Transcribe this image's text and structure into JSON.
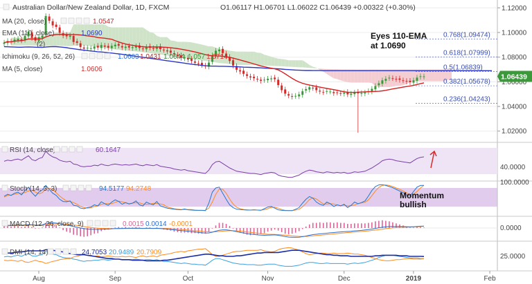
{
  "header": {
    "symbol": "Australian Dollar/New Zealand Dollar, 1D, FXCM",
    "ohlc": "O1.06117  H1.06701  L1.06022  C1.06439  +0.00322 (+0.30%)",
    "ma20": {
      "label": "MA (20, close)",
      "value": "1.0547"
    },
    "ema110": {
      "label": "EMA (110, close)",
      "value": "1.0690"
    },
    "hidden_label": "(2)",
    "ichimoku": {
      "label": "Ichimoku (9, 26, 52, 26)",
      "v1": "1.0603",
      "v2": "1.0431",
      "v3": "1.0644",
      "v4": "1.057",
      "v5": "1.0714"
    },
    "ma5": {
      "label": "MA (5, close)",
      "value": "1.0606"
    }
  },
  "annotations": {
    "eyes_line1": "Eyes 110-EMA",
    "eyes_line2": "at 1.0690",
    "momentum_line1": "Momentum",
    "momentum_line2": "bullish"
  },
  "fib_levels": [
    {
      "label": "0.768(1.09474)",
      "value": 1.09474
    },
    {
      "label": "0.618(1.07999)",
      "value": 1.07999
    },
    {
      "label": "0.5(1.06839)",
      "value": 1.06839
    },
    {
      "label": "0.382(1.05678)",
      "value": 1.05678
    },
    {
      "label": "0.236(1.04243)",
      "value": 1.04243
    }
  ],
  "price_badge": "1.06439",
  "indicators": {
    "rsi": {
      "label": "RSI (14, close)",
      "value": "60.1647",
      "axis": "40.0000"
    },
    "stoch": {
      "label": "Stoch (14, 3, 3)",
      "k": "94.5177",
      "d": "94.2748",
      "axis": "100.0000"
    },
    "macd": {
      "label": "MACD (12, 26, close, 9)",
      "v1": "0.0015",
      "v2": "0.0014",
      "v3": "-0.0001",
      "axis": "0.0000"
    },
    "dmi": {
      "label": "DMI (14, 14)",
      "v1": "24.7053",
      "v2": "20.9489",
      "v3": "20.7909",
      "axis": "25.0000"
    }
  },
  "colors": {
    "bull": "#3a9a3a",
    "bear": "#d42a2a",
    "ma20": "#d62020",
    "ema110": "#2a35c8",
    "cloud_green": "#cfe3c8",
    "cloud_red": "#f4cdd2",
    "rsi": "#7b3fa8",
    "rsi_band": "#efe4f6",
    "stoch_k": "#1f77d0",
    "stoch_d": "#ff8a1a",
    "stoch_band": "#d4b7e6",
    "macd_hist": "#e0609a",
    "macd_line": "#2a6fd0",
    "macd_signal": "#ff8a1a",
    "dmi_adx": "#1a2ba8",
    "dmi_plus": "#3aa0e0",
    "dmi_minus": "#ff8a1a",
    "fib": "#3a4fb0"
  },
  "chart_data": {
    "type": "line",
    "instrument": "AUD/NZD",
    "timeframe": "1D",
    "y_axis_ticks": [
      "1.12000",
      "1.10000",
      "1.08000",
      "1.06000",
      "1.04000",
      "1.02000"
    ],
    "ylim": [
      1.012,
      1.123
    ],
    "x_axis_ticks": [
      "Aug",
      "Sep",
      "Oct",
      "Nov",
      "Dec",
      "2019",
      "Feb"
    ],
    "x_tick_positions": [
      0,
      22,
      43,
      66,
      88,
      108,
      130
    ],
    "last_index": 121,
    "close": [
      1.0918,
      1.0931,
      1.0925,
      1.0942,
      1.0949,
      1.0935,
      1.0972,
      1.1005,
      1.0956,
      1.0935,
      1.0962,
      1.0975,
      1.1134,
      1.1095,
      1.1058,
      1.1045,
      1.0998,
      1.0975,
      1.0969,
      1.0976,
      1.0923,
      1.0916,
      1.0882,
      1.0869,
      1.0876,
      1.0873,
      1.0886,
      1.0878,
      1.0898,
      1.0885,
      1.0877,
      1.0892,
      1.0901,
      1.0893,
      1.0879,
      1.0885,
      1.0878,
      1.0881,
      1.0889,
      1.0874,
      1.0868,
      1.0883,
      1.0876,
      1.0871,
      1.0882,
      1.0865,
      1.0859,
      1.0847,
      1.0836,
      1.0823,
      1.0809,
      1.0794,
      1.0798,
      1.0781,
      1.0769,
      1.0755,
      1.0748,
      1.0736,
      1.0727,
      1.0756,
      1.0815,
      1.0852,
      1.0861,
      1.0833,
      1.0806,
      1.0769,
      1.0732,
      1.0698,
      1.0684,
      1.0665,
      1.0648,
      1.0635,
      1.0629,
      1.0621,
      1.0608,
      1.0617,
      1.0625,
      1.0628,
      1.0621,
      1.0574,
      1.0532,
      1.0504,
      1.0488,
      1.0479,
      1.0486,
      1.0498,
      1.0523,
      1.0541,
      1.0556,
      1.0549,
      1.0532,
      1.0521,
      1.0515,
      1.0525,
      1.0521,
      1.0508,
      1.0512,
      1.0507,
      1.0512,
      1.0498,
      1.0504,
      1.0513,
      1.0506,
      1.0509,
      1.0512,
      1.0525,
      1.0543,
      1.0566,
      1.0588,
      1.0612,
      1.0624,
      1.0633,
      1.0628,
      1.0621,
      1.0616,
      1.0611,
      1.0602,
      1.0597,
      1.0612,
      1.0634,
      1.0645,
      1.0644
    ],
    "ema110": [
      1.0885,
      1.0884,
      1.0883,
      1.0882,
      1.0881,
      1.0881,
      1.0882,
      1.0883,
      1.0882,
      1.0881,
      1.088,
      1.0879,
      1.0882,
      1.0884,
      1.0886,
      1.0885,
      1.0883,
      1.088,
      1.0877,
      1.0872,
      1.0868,
      1.0864,
      1.086,
      1.0856,
      1.0853,
      1.085,
      1.0847,
      1.0844,
      1.0842,
      1.0839,
      1.0836,
      1.0833,
      1.083,
      1.0827,
      1.0823,
      1.0819,
      1.0815,
      1.0811,
      1.0807,
      1.0803,
      1.0799,
      1.0795,
      1.0791,
      1.0787,
      1.0783,
      1.0779,
      1.0775,
      1.0771,
      1.0767,
      1.0763,
      1.0759,
      1.0755,
      1.0751,
      1.0747,
      1.0743,
      1.074,
      1.0737,
      1.0733,
      1.073,
      1.0728,
      1.0727,
      1.0727,
      1.0726,
      1.0726,
      1.0725,
      1.0724,
      1.0723,
      1.0722,
      1.0721,
      1.0719,
      1.0718,
      1.0717,
      1.0716,
      1.0714,
      1.0713,
      1.0711,
      1.071,
      1.0708,
      1.0707,
      1.0705,
      1.0703,
      1.0701,
      1.0699,
      1.0697,
      1.0695,
      1.0694,
      1.0693,
      1.0692,
      1.0692,
      1.0691,
      1.0691,
      1.0691,
      1.069,
      1.069,
      1.069,
      1.069,
      1.069,
      1.069,
      1.069,
      1.069,
      1.069,
      1.069,
      1.069,
      1.069,
      1.069,
      1.069,
      1.069,
      1.069,
      1.069,
      1.069,
      1.069,
      1.069,
      1.069,
      1.069,
      1.069,
      1.069,
      1.069,
      1.069,
      1.069,
      1.069,
      1.069,
      1.069
    ],
    "rsi": [
      52,
      54,
      53,
      55,
      56,
      54,
      58,
      62,
      55,
      53,
      57,
      59,
      70,
      64,
      60,
      58,
      54,
      52,
      51,
      52,
      47,
      46,
      43,
      42,
      43,
      43,
      45,
      44,
      47,
      45,
      44,
      46,
      47,
      46,
      45,
      46,
      45,
      46,
      47,
      45,
      44,
      46,
      45,
      44,
      46,
      43,
      42,
      41,
      40,
      38,
      37,
      36,
      37,
      35,
      34,
      33,
      32,
      31,
      30,
      36,
      46,
      51,
      52,
      48,
      44,
      40,
      37,
      34,
      33,
      32,
      31,
      30,
      30,
      29,
      28,
      30,
      31,
      32,
      31,
      27,
      25,
      24,
      23,
      23,
      25,
      27,
      31,
      34,
      36,
      35,
      33,
      32,
      31,
      33,
      32,
      31,
      32,
      31,
      32,
      30,
      31,
      33,
      32,
      33,
      34,
      37,
      40,
      44,
      48,
      53,
      55,
      56,
      55,
      53,
      52,
      51,
      50,
      49,
      53,
      57,
      59,
      60
    ],
    "rsi_axis_value": 40,
    "stoch_k": [
      55,
      62,
      58,
      66,
      70,
      60,
      75,
      88,
      68,
      55,
      70,
      78,
      94,
      80,
      66,
      58,
      44,
      36,
      35,
      38,
      22,
      20,
      12,
      10,
      14,
      16,
      24,
      20,
      35,
      28,
      22,
      34,
      42,
      36,
      26,
      32,
      27,
      30,
      38,
      24,
      20,
      34,
      28,
      24,
      36,
      20,
      16,
      12,
      10,
      8,
      7,
      6,
      9,
      6,
      5,
      4,
      4,
      4,
      3,
      30,
      70,
      85,
      88,
      66,
      44,
      24,
      14,
      8,
      7,
      6,
      5,
      5,
      6,
      5,
      4,
      10,
      16,
      18,
      12,
      6,
      4,
      3,
      3,
      3,
      8,
      14,
      30,
      44,
      54,
      48,
      34,
      26,
      22,
      34,
      28,
      18,
      24,
      20,
      26,
      14,
      22,
      34,
      28,
      32,
      38,
      56,
      76,
      90,
      96,
      97,
      94,
      90,
      86,
      80,
      74,
      68,
      60,
      56,
      72,
      88,
      94,
      94.5
    ],
    "stoch_d": [
      52,
      58,
      59,
      62,
      65,
      66,
      68,
      74,
      77,
      70,
      64,
      68,
      81,
      84,
      80,
      68,
      56,
      46,
      38,
      36,
      32,
      26,
      18,
      14,
      12,
      13,
      18,
      20,
      26,
      28,
      28,
      28,
      33,
      37,
      35,
      31,
      28,
      30,
      32,
      31,
      27,
      26,
      27,
      29,
      29,
      27,
      24,
      16,
      13,
      10,
      8,
      7,
      7,
      7,
      7,
      5,
      4,
      4,
      4,
      12,
      34,
      62,
      81,
      80,
      66,
      45,
      27,
      15,
      10,
      7,
      6,
      5,
      5,
      5,
      5,
      6,
      10,
      15,
      15,
      12,
      7,
      4,
      3,
      3,
      5,
      8,
      17,
      29,
      43,
      49,
      45,
      36,
      27,
      27,
      28,
      27,
      23,
      21,
      23,
      20,
      21,
      23,
      28,
      31,
      33,
      42,
      57,
      74,
      87,
      94,
      96,
      94,
      90,
      85,
      80,
      74,
      67,
      61,
      63,
      72,
      85,
      94.3
    ],
    "macd": [
      0.002,
      0.0021,
      0.0021,
      0.0022,
      0.0023,
      0.0022,
      0.0024,
      0.0027,
      0.0025,
      0.0022,
      0.0023,
      0.0024,
      0.0036,
      0.004,
      0.004,
      0.0038,
      0.0033,
      0.0027,
      0.0022,
      0.0018,
      0.0011,
      0.0006,
      0.0,
      -0.0005,
      -0.0008,
      -0.001,
      -0.001,
      -0.0011,
      -0.0009,
      -0.0008,
      -0.0008,
      -0.0006,
      -0.0004,
      -0.0003,
      -0.0003,
      -0.0002,
      -0.0002,
      -0.0002,
      -0.0001,
      -0.0002,
      -0.0003,
      -0.0002,
      -0.0002,
      -0.0003,
      -0.0002,
      -0.0004,
      -0.0006,
      -0.0008,
      -0.0011,
      -0.0014,
      -0.0017,
      -0.002,
      -0.0022,
      -0.0025,
      -0.0028,
      -0.0031,
      -0.0034,
      -0.0037,
      -0.0039,
      -0.0038,
      -0.0032,
      -0.0024,
      -0.0017,
      -0.0014,
      -0.0014,
      -0.0017,
      -0.0022,
      -0.0028,
      -0.0033,
      -0.0038,
      -0.0043,
      -0.0047,
      -0.005,
      -0.0053,
      -0.0055,
      -0.0056,
      -0.0055,
      -0.0054,
      -0.0053,
      -0.0056,
      -0.0061,
      -0.0066,
      -0.007,
      -0.0072,
      -0.0072,
      -0.0071,
      -0.0067,
      -0.0062,
      -0.0056,
      -0.0051,
      -0.0048,
      -0.0045,
      -0.0043,
      -0.004,
      -0.0037,
      -0.0035,
      -0.0032,
      -0.003,
      -0.0028,
      -0.0027,
      -0.0025,
      -0.0022,
      -0.002,
      -0.0018,
      -0.0015,
      -0.0012,
      -0.0008,
      -0.0003,
      0.0002,
      0.0006,
      0.0009,
      0.0011,
      0.0012,
      0.0012,
      0.0012,
      0.0011,
      0.001,
      0.0009,
      0.001,
      0.0012,
      0.0014,
      0.0015
    ],
    "macd_signal": [
      0.0016,
      0.0017,
      0.0018,
      0.0018,
      0.0019,
      0.002,
      0.0021,
      0.0022,
      0.0023,
      0.0023,
      0.0023,
      0.0023,
      0.0026,
      0.0029,
      0.0031,
      0.0032,
      0.0032,
      0.0031,
      0.0029,
      0.0027,
      0.0024,
      0.002,
      0.0016,
      0.0012,
      0.0008,
      0.0004,
      0.0001,
      -0.0001,
      -0.0003,
      -0.0004,
      -0.0005,
      -0.0005,
      -0.0005,
      -0.0005,
      -0.0004,
      -0.0004,
      -0.0003,
      -0.0003,
      -0.0003,
      -0.0003,
      -0.0003,
      -0.0003,
      -0.0003,
      -0.0003,
      -0.0003,
      -0.0003,
      -0.0003,
      -0.0004,
      -0.0006,
      -0.0007,
      -0.0009,
      -0.0011,
      -0.0013,
      -0.0016,
      -0.0018,
      -0.0021,
      -0.0023,
      -0.0026,
      -0.0028,
      -0.003,
      -0.0031,
      -0.0029,
      -0.0027,
      -0.0024,
      -0.0022,
      -0.0021,
      -0.0021,
      -0.0022,
      -0.0024,
      -0.0027,
      -0.003,
      -0.0033,
      -0.0037,
      -0.004,
      -0.0043,
      -0.0046,
      -0.0048,
      -0.0049,
      -0.005,
      -0.0051,
      -0.0053,
      -0.0055,
      -0.0058,
      -0.0061,
      -0.0063,
      -0.0065,
      -0.0065,
      -0.0065,
      -0.0063,
      -0.0061,
      -0.0058,
      -0.0056,
      -0.0053,
      -0.0051,
      -0.0048,
      -0.0045,
      -0.0043,
      -0.004,
      -0.0038,
      -0.0035,
      -0.0033,
      -0.0031,
      -0.0029,
      -0.0027,
      -0.0024,
      -0.0022,
      -0.0019,
      -0.0016,
      -0.0012,
      -0.0009,
      -0.0005,
      -0.0002,
      0.0001,
      0.0003,
      0.0005,
      0.0006,
      0.0007,
      0.0008,
      0.0009,
      0.001,
      0.0012,
      0.0014
    ],
    "dmi_adx": [
      30,
      31,
      31,
      32,
      33,
      33,
      34,
      35,
      35,
      35,
      35,
      35,
      37,
      37,
      36,
      35,
      34,
      33,
      31,
      30,
      29,
      28,
      28,
      28,
      27,
      26,
      25,
      24,
      23,
      22,
      21,
      21,
      20,
      20,
      19,
      19,
      19,
      18,
      18,
      18,
      18,
      17,
      17,
      17,
      17,
      17,
      18,
      18,
      19,
      20,
      21,
      22,
      23,
      24,
      25,
      26,
      27,
      28,
      29,
      29,
      28,
      27,
      26,
      26,
      25,
      25,
      25,
      26,
      26,
      27,
      28,
      29,
      30,
      31,
      31,
      32,
      32,
      32,
      32,
      32,
      33,
      34,
      35,
      36,
      36,
      36,
      35,
      34,
      33,
      32,
      31,
      30,
      29,
      28,
      28,
      27,
      27,
      26,
      26,
      26,
      25,
      25,
      25,
      25,
      25,
      25,
      25,
      26,
      26,
      27,
      27,
      27,
      27,
      27,
      26,
      26,
      26,
      25,
      25,
      25,
      25,
      24.7
    ],
    "dmi_plus": [
      24,
      25,
      24,
      26,
      27,
      25,
      28,
      30,
      26,
      25,
      27,
      28,
      34,
      31,
      29,
      28,
      25,
      23,
      22,
      22,
      20,
      19,
      17,
      16,
      17,
      17,
      18,
      18,
      19,
      19,
      18,
      19,
      20,
      20,
      19,
      19,
      19,
      19,
      20,
      19,
      18,
      19,
      19,
      18,
      19,
      17,
      16,
      16,
      15,
      14,
      13,
      12,
      13,
      12,
      11,
      11,
      10,
      10,
      9,
      13,
      18,
      21,
      21,
      19,
      17,
      15,
      13,
      12,
      11,
      11,
      10,
      10,
      10,
      9,
      9,
      10,
      11,
      11,
      11,
      9,
      8,
      7,
      7,
      7,
      8,
      9,
      11,
      13,
      14,
      14,
      13,
      12,
      12,
      13,
      12,
      12,
      12,
      12,
      12,
      11,
      12,
      13,
      12,
      13,
      14,
      16,
      18,
      20,
      23,
      25,
      27,
      27,
      27,
      26,
      25,
      24,
      23,
      22,
      22,
      22,
      21,
      20.9
    ],
    "dmi_minus": [
      18,
      17,
      18,
      17,
      16,
      18,
      15,
      14,
      16,
      18,
      16,
      15,
      12,
      14,
      16,
      17,
      19,
      20,
      21,
      21,
      24,
      25,
      27,
      28,
      27,
      27,
      25,
      26,
      24,
      25,
      26,
      25,
      24,
      24,
      25,
      24,
      25,
      24,
      23,
      25,
      26,
      24,
      25,
      26,
      24,
      27,
      28,
      29,
      30,
      32,
      33,
      34,
      33,
      35,
      36,
      37,
      38,
      38,
      39,
      34,
      28,
      25,
      25,
      27,
      29,
      31,
      33,
      34,
      34,
      35,
      36,
      36,
      36,
      36,
      37,
      35,
      34,
      33,
      34,
      37,
      39,
      40,
      41,
      40,
      38,
      36,
      33,
      30,
      28,
      29,
      30,
      31,
      31,
      30,
      30,
      31,
      30,
      30,
      30,
      31,
      30,
      29,
      29,
      28,
      27,
      25,
      23,
      21,
      19,
      18,
      17,
      17,
      18,
      19,
      19,
      20,
      21,
      21,
      20,
      20,
      20,
      20.8
    ]
  }
}
